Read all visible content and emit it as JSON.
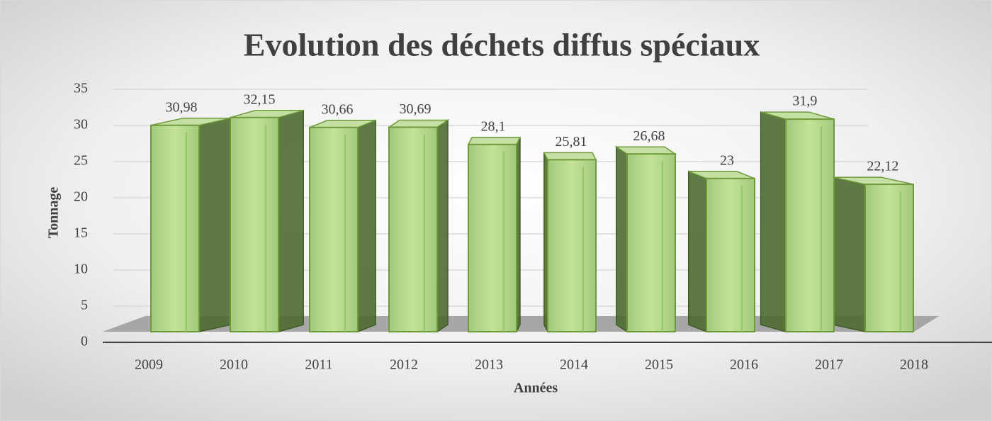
{
  "chart_data": {
    "type": "bar3d",
    "title": "Evolution des déchets diffus spéciaux",
    "x_label": "Années",
    "y_label": "Tonnage",
    "categories": [
      "2009",
      "2010",
      "2011",
      "2012",
      "2013",
      "2014",
      "2015",
      "2016",
      "2017",
      "2018"
    ],
    "values": [
      30.98,
      32.15,
      30.66,
      30.69,
      28.1,
      25.81,
      26.68,
      23,
      31.9,
      22.12
    ],
    "value_labels": [
      "30,98",
      "32,15",
      "30,66",
      "30,69",
      "28,1",
      "25,81",
      "26,68",
      "23",
      "31,9",
      "22,12"
    ],
    "color": "#a9d18e",
    "ylim": [
      0,
      35
    ],
    "yticks": [
      0,
      5,
      10,
      15,
      20,
      25,
      30,
      35
    ],
    "grid": true
  }
}
